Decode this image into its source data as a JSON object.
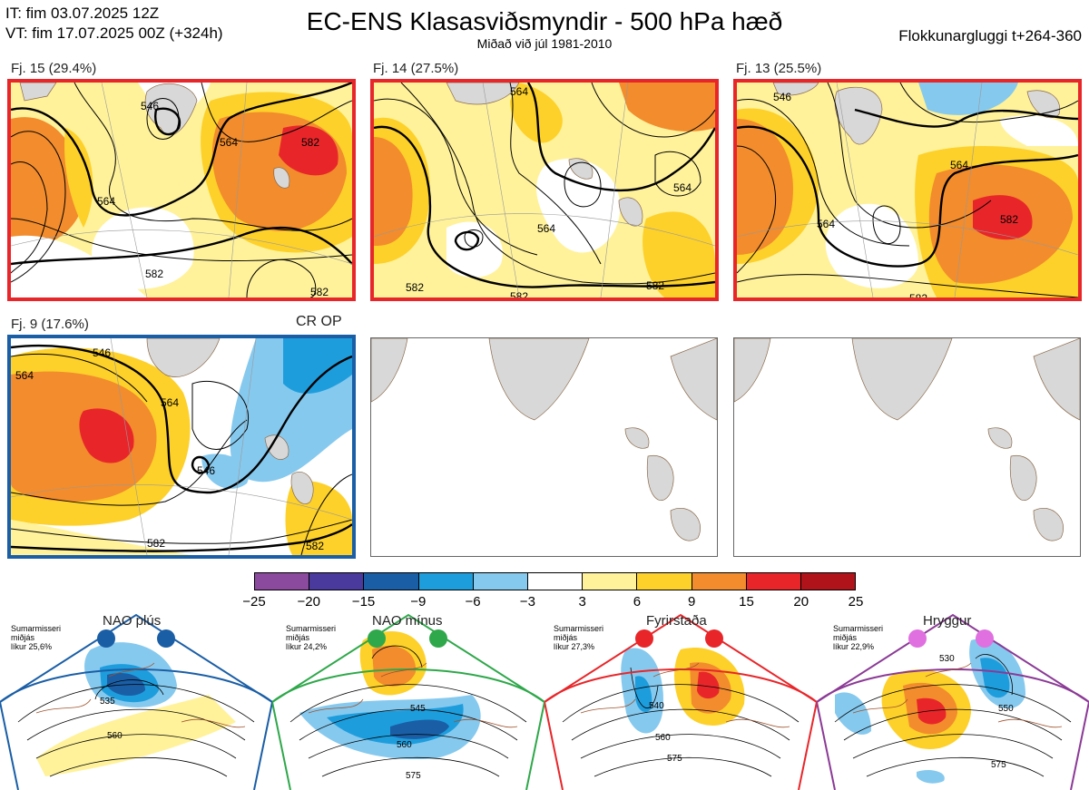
{
  "header": {
    "it_line": "IT: fim 03.07.2025 12Z",
    "vt_line": "VT: fim 17.07.2025 00Z  (+324h)",
    "title": "EC-ENS Klasasviðsmyndir - 500 hPa hæð",
    "subtitle": "Miðað við júl 1981-2010",
    "window": "Flokkunargluggi t+264-360"
  },
  "panels": [
    {
      "label": "Fj. 15 (29.4%)",
      "border": "#e8262a",
      "contours": [
        "546",
        "564",
        "582",
        "564",
        "582",
        "582"
      ]
    },
    {
      "label": "Fj. 14 (27.5%)",
      "border": "#e8262a",
      "contours": [
        "564",
        "564",
        "582",
        "582",
        "582",
        "564"
      ]
    },
    {
      "label": "Fj. 13 (25.5%)",
      "border": "#e8262a",
      "contours": [
        "546",
        "564",
        "564",
        "582",
        "582"
      ]
    },
    {
      "label": "Fj. 9 (17.6%)",
      "border": "#1a5ea6",
      "contours": [
        "546",
        "564",
        "546",
        "564",
        "582",
        "582"
      ],
      "tag": "CR OP"
    }
  ],
  "colorbar": {
    "colors": [
      "#8c4a9e",
      "#4a3a9e",
      "#1a5ea6",
      "#1e9ddd",
      "#86c9ee",
      "#ffffff",
      "#fff29a",
      "#fdd12a",
      "#f28c2c",
      "#e8262a",
      "#b0141a"
    ],
    "ticks": [
      "−25",
      "−20",
      "−15",
      "−9",
      "−6",
      "−3",
      "3",
      "6",
      "9",
      "15",
      "20",
      "25"
    ]
  },
  "regimes": [
    {
      "title": "NAO plús",
      "note": [
        "Sumarmisseri",
        "miðjás",
        "líkur 25,6%"
      ],
      "color": "#1a5ea6",
      "contours": [
        "535",
        "560"
      ]
    },
    {
      "title": "NAO mínus",
      "note": [
        "Sumarmisseri",
        "miðjás",
        "líkur 24,2%"
      ],
      "color": "#2ea84a",
      "contours": [
        "545",
        "560",
        "575"
      ]
    },
    {
      "title": "Fyrirstaða",
      "note": [
        "Sumarmisseri",
        "miðjás",
        "líkur 27,3%"
      ],
      "color": "#e8262a",
      "contours": [
        "540",
        "560",
        "575"
      ]
    },
    {
      "title": "Hryggur",
      "note": [
        "Sumarmisseri",
        "miðjás",
        "líkur 22,9%"
      ],
      "color": "#e070e0",
      "contours": [
        "530",
        "550",
        "575"
      ]
    }
  ]
}
